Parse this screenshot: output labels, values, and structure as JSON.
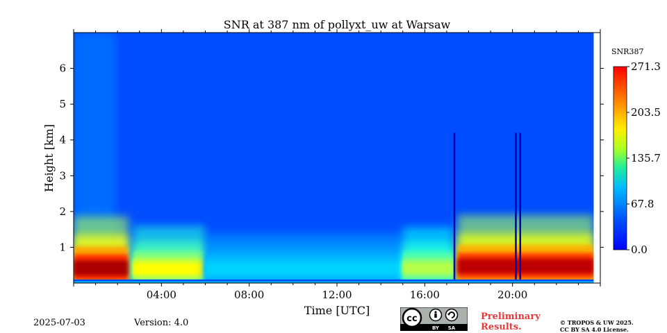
{
  "chart_data": {
    "type": "heatmap",
    "title": "SNR at 387 nm of pollyxt_uw at Warsaw",
    "xlabel": "Time [UTC]",
    "ylabel": "Height [km]",
    "x_range_hours": [
      0,
      24
    ],
    "xlim_hours": [
      0,
      24
    ],
    "x_ticks": [
      {
        "value": 4,
        "label": "04:00"
      },
      {
        "value": 8,
        "label": "08:00"
      },
      {
        "value": 12,
        "label": "12:00"
      },
      {
        "value": 16,
        "label": "16:00"
      },
      {
        "value": 20,
        "label": "20:00"
      }
    ],
    "ylim_km": [
      0,
      7
    ],
    "y_ticks": [
      {
        "value": 1,
        "label": "1"
      },
      {
        "value": 2,
        "label": "2"
      },
      {
        "value": 3,
        "label": "3"
      },
      {
        "value": 4,
        "label": "4"
      },
      {
        "value": 5,
        "label": "5"
      },
      {
        "value": 6,
        "label": "6"
      }
    ],
    "colorbar": {
      "label": "SNR387",
      "min": 0.0,
      "max": 271.3,
      "ticks": [
        "0.0",
        "67.8",
        "135.7",
        "203.5",
        "271.3"
      ],
      "colormap": "jet"
    },
    "data_coverage_end_hour": 23.7,
    "signal_features": [
      {
        "description": "strong near-surface layer",
        "time_start_h": 0,
        "time_end_h": 2.5,
        "height_km": 0.4,
        "snr": 260
      },
      {
        "description": "weakening layer",
        "time_start_h": 2.7,
        "time_end_h": 6,
        "height_km": 0.38,
        "snr": 170
      },
      {
        "description": "daytime low signal",
        "time_start_h": 6,
        "time_end_h": 15,
        "height_km": 0.38,
        "snr": 90
      },
      {
        "description": "rising layer",
        "time_start_h": 15,
        "time_end_h": 17.3,
        "height_km": 0.4,
        "snr": 150
      },
      {
        "description": "strong nighttime layer",
        "time_start_h": 17.5,
        "time_end_h": 23.7,
        "height_km": 0.45,
        "snr": 255
      }
    ],
    "data_gaps_hours": [
      17.35,
      20.15,
      20.35
    ]
  },
  "footer": {
    "date": "2025-07-03",
    "version": "Version: 4.0",
    "preliminary_line1": "Preliminary",
    "preliminary_line2": "Results.",
    "copyright_line1": "© TROPOS & UW 2025.",
    "copyright_line2": "CC BY SA 4.0 License.",
    "license_by": "BY",
    "license_sa": "SA",
    "license_cc": "cc"
  }
}
